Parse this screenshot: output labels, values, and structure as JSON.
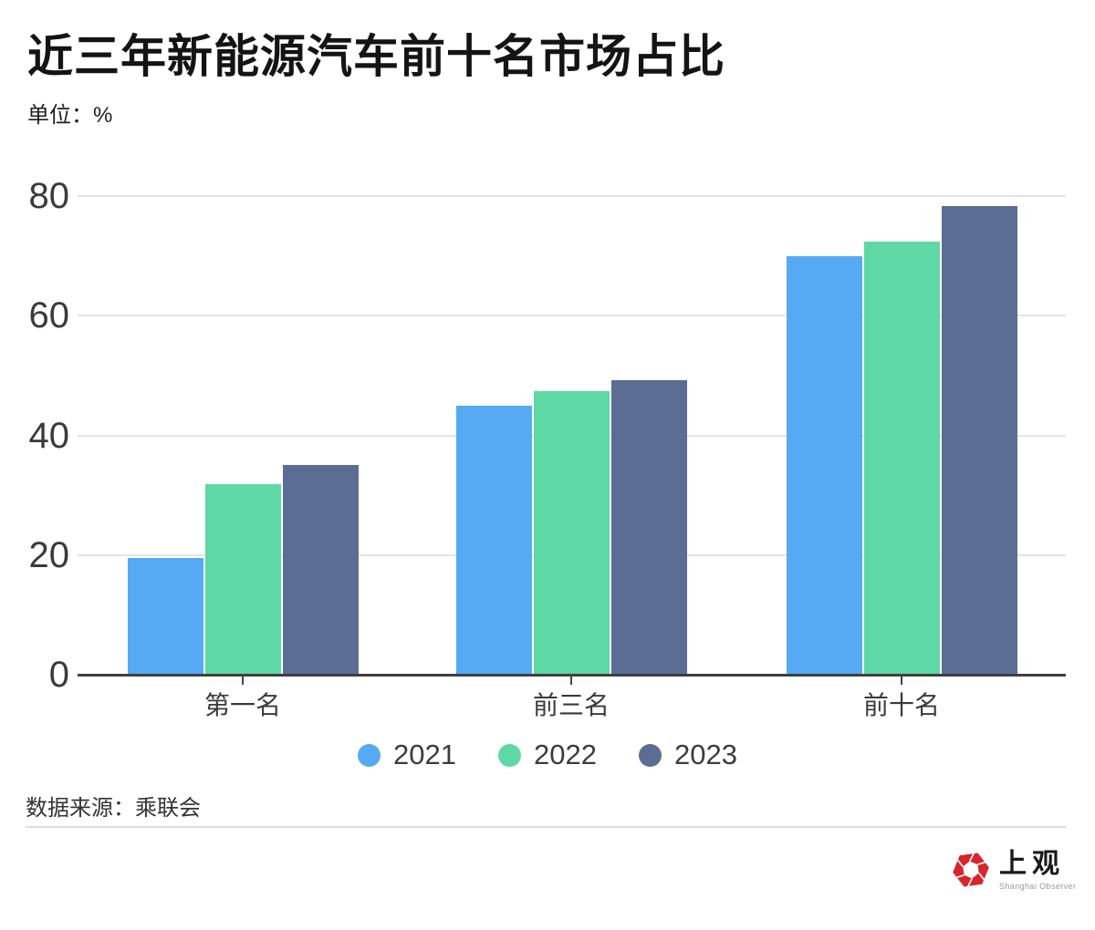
{
  "header": {
    "title": "近三年新能源汽车前十名市场占比",
    "unit_label": "单位：%"
  },
  "chart_data": {
    "type": "bar",
    "categories": [
      "第一名",
      "前三名",
      "前十名"
    ],
    "series": [
      {
        "name": "2021",
        "color": "#56AAF3",
        "values": [
          19.5,
          44.9,
          69.9
        ]
      },
      {
        "name": "2022",
        "color": "#5ED8A5",
        "values": [
          31.8,
          47.4,
          72.4
        ]
      },
      {
        "name": "2023",
        "color": "#5B6D93",
        "values": [
          35.1,
          49.2,
          78.3
        ]
      }
    ],
    "yticks": [
      0,
      20,
      40,
      60,
      80
    ],
    "ylim": [
      0,
      80
    ],
    "xlabel": "",
    "ylabel": "单位：%",
    "grid": true,
    "legend_position": "bottom",
    "grid_color": "#e4e4e4",
    "axis_color": "#3f3f3f"
  },
  "footer": {
    "source": "数据来源：乘联会"
  },
  "logo": {
    "cn": "上观",
    "en": "Shanghai Observer",
    "brand_color": "#d7252b"
  }
}
